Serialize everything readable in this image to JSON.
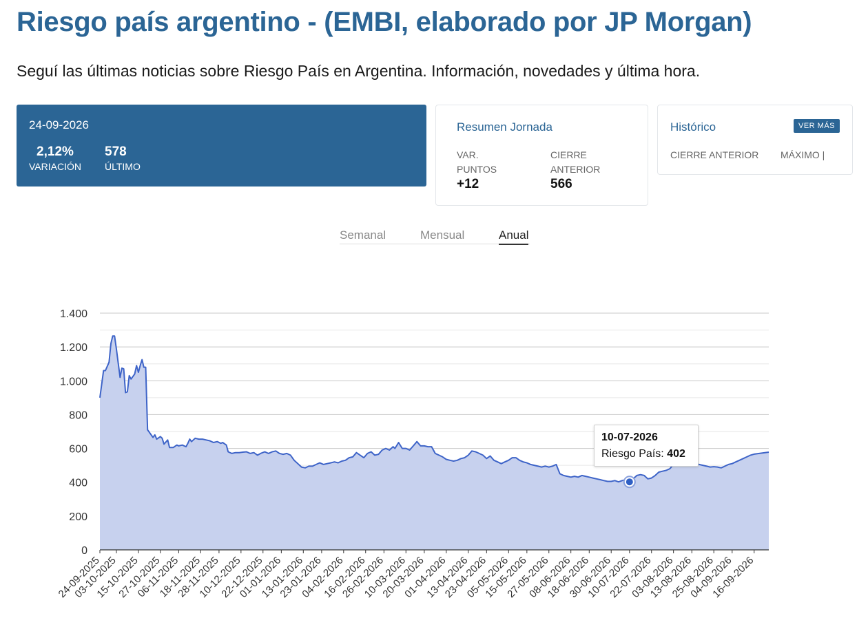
{
  "header": {
    "title": "Riesgo país argentino - (EMBI, elaborado por JP Morgan)",
    "subtitle": "Seguí las últimas noticias sobre Riesgo País en Argentina. Información, novedades y última hora."
  },
  "main_card": {
    "date": "24-09-2026",
    "variation_value": "2,12%",
    "variation_label": "Variación",
    "last_value": "578",
    "last_label": "Último"
  },
  "resumen": {
    "title": "Resumen Jornada",
    "var_label_line1": "Var.",
    "var_label_line2": "Puntos",
    "var_value": "+12",
    "cierre_label_line1": "Cierre",
    "cierre_label_line2": "Anterior",
    "cierre_value": "566"
  },
  "historico": {
    "title": "Histórico",
    "button": "VER MÁS",
    "col1": "Cierre Anterior",
    "col2": "Máximo |"
  },
  "tabs": [
    {
      "label": "Semanal",
      "active": false
    },
    {
      "label": "Mensual",
      "active": false
    },
    {
      "label": "Anual",
      "active": true
    }
  ],
  "tooltip": {
    "date": "10-07-2026",
    "series_label": "Riesgo País:",
    "value": "402"
  },
  "colors": {
    "brand": "#2b6595",
    "line": "#3e64c8",
    "area": "#c7d1ee"
  },
  "chart_data": {
    "type": "area",
    "series_name": "Riesgo País",
    "ylim": [
      0,
      1400
    ],
    "yticks": [
      0,
      200,
      400,
      600,
      800,
      1000,
      1200,
      1400
    ],
    "ytick_labels": [
      "0",
      "200",
      "400",
      "600",
      "800",
      "1.000",
      "1.200",
      "1.400"
    ],
    "grid": true,
    "xtick_labels": [
      "24-09-2025",
      "03-10-2025",
      "15-10-2025",
      "27-10-2025",
      "06-11-2025",
      "18-11-2025",
      "28-11-2025",
      "10-12-2025",
      "22-12-2025",
      "01-01-2026",
      "13-01-2026",
      "23-01-2026",
      "04-02-2026",
      "16-02-2026",
      "26-02-2026",
      "10-03-2026",
      "20-03-2026",
      "01-04-2026",
      "13-04-2026",
      "23-04-2026",
      "05-05-2026",
      "15-05-2026",
      "27-05-2026",
      "08-06-2026",
      "18-06-2026",
      "30-06-2026",
      "10-07-2026",
      "22-07-2026",
      "03-08-2026",
      "13-08-2026",
      "25-08-2026",
      "04-09-2026",
      "16-09-2026"
    ],
    "highlight": {
      "x": "10-07-2026",
      "y": 402
    },
    "points": [
      [
        "24-09-2025",
        900
      ],
      [
        "26-09-2025",
        1060
      ],
      [
        "27-09-2025",
        1060
      ],
      [
        "29-09-2025",
        1110
      ],
      [
        "30-09-2025",
        1220
      ],
      [
        "01-10-2025",
        1265
      ],
      [
        "02-10-2025",
        1265
      ],
      [
        "03-10-2025",
        1190
      ],
      [
        "05-10-2025",
        1020
      ],
      [
        "06-10-2025",
        1075
      ],
      [
        "07-10-2025",
        1070
      ],
      [
        "08-10-2025",
        930
      ],
      [
        "09-10-2025",
        935
      ],
      [
        "10-10-2025",
        1030
      ],
      [
        "11-10-2025",
        1010
      ],
      [
        "13-10-2025",
        1040
      ],
      [
        "14-10-2025",
        1090
      ],
      [
        "15-10-2025",
        1050
      ],
      [
        "16-10-2025",
        1090
      ],
      [
        "17-10-2025",
        1125
      ],
      [
        "18-10-2025",
        1080
      ],
      [
        "19-10-2025",
        1080
      ],
      [
        "20-10-2025",
        710
      ],
      [
        "22-10-2025",
        680
      ],
      [
        "23-10-2025",
        665
      ],
      [
        "24-10-2025",
        680
      ],
      [
        "25-10-2025",
        655
      ],
      [
        "27-10-2025",
        670
      ],
      [
        "28-10-2025",
        660
      ],
      [
        "29-10-2025",
        625
      ],
      [
        "31-10-2025",
        650
      ],
      [
        "01-11-2025",
        605
      ],
      [
        "03-11-2025",
        605
      ],
      [
        "05-11-2025",
        620
      ],
      [
        "06-11-2025",
        615
      ],
      [
        "08-11-2025",
        620
      ],
      [
        "10-11-2025",
        610
      ],
      [
        "11-11-2025",
        630
      ],
      [
        "12-11-2025",
        655
      ],
      [
        "13-11-2025",
        640
      ],
      [
        "15-11-2025",
        660
      ],
      [
        "17-11-2025",
        655
      ],
      [
        "19-11-2025",
        655
      ],
      [
        "21-11-2025",
        650
      ],
      [
        "23-11-2025",
        645
      ],
      [
        "25-11-2025",
        635
      ],
      [
        "27-11-2025",
        640
      ],
      [
        "29-11-2025",
        630
      ],
      [
        "30-11-2025",
        635
      ],
      [
        "02-12-2025",
        620
      ],
      [
        "03-12-2025",
        580
      ],
      [
        "05-12-2025",
        570
      ],
      [
        "07-12-2025",
        575
      ],
      [
        "09-12-2025",
        575
      ],
      [
        "11-12-2025",
        578
      ],
      [
        "13-12-2025",
        580
      ],
      [
        "15-12-2025",
        570
      ],
      [
        "17-12-2025",
        575
      ],
      [
        "19-12-2025",
        560
      ],
      [
        "21-12-2025",
        572
      ],
      [
        "23-12-2025",
        580
      ],
      [
        "25-12-2025",
        570
      ],
      [
        "27-12-2025",
        580
      ],
      [
        "29-12-2025",
        585
      ],
      [
        "31-12-2025",
        570
      ],
      [
        "02-01-2026",
        565
      ],
      [
        "04-01-2026",
        570
      ],
      [
        "06-01-2026",
        560
      ],
      [
        "08-01-2026",
        530
      ],
      [
        "10-01-2026",
        510
      ],
      [
        "12-01-2026",
        490
      ],
      [
        "14-01-2026",
        485
      ],
      [
        "16-01-2026",
        495
      ],
      [
        "18-01-2026",
        495
      ],
      [
        "20-01-2026",
        505
      ],
      [
        "22-01-2026",
        515
      ],
      [
        "24-01-2026",
        505
      ],
      [
        "26-01-2026",
        510
      ],
      [
        "28-01-2026",
        515
      ],
      [
        "30-01-2026",
        520
      ],
      [
        "01-02-2026",
        515
      ],
      [
        "03-02-2026",
        525
      ],
      [
        "05-02-2026",
        530
      ],
      [
        "07-02-2026",
        545
      ],
      [
        "09-02-2026",
        550
      ],
      [
        "11-02-2026",
        575
      ],
      [
        "13-02-2026",
        560
      ],
      [
        "15-02-2026",
        545
      ],
      [
        "17-02-2026",
        570
      ],
      [
        "19-02-2026",
        580
      ],
      [
        "21-02-2026",
        560
      ],
      [
        "23-02-2026",
        565
      ],
      [
        "25-02-2026",
        590
      ],
      [
        "27-02-2026",
        600
      ],
      [
        "01-03-2026",
        590
      ],
      [
        "03-03-2026",
        610
      ],
      [
        "04-03-2026",
        600
      ],
      [
        "06-03-2026",
        635
      ],
      [
        "08-03-2026",
        600
      ],
      [
        "10-03-2026",
        600
      ],
      [
        "12-03-2026",
        590
      ],
      [
        "14-03-2026",
        615
      ],
      [
        "16-03-2026",
        640
      ],
      [
        "18-03-2026",
        615
      ],
      [
        "20-03-2026",
        615
      ],
      [
        "22-03-2026",
        610
      ],
      [
        "24-03-2026",
        610
      ],
      [
        "26-03-2026",
        570
      ],
      [
        "28-03-2026",
        560
      ],
      [
        "30-03-2026",
        550
      ],
      [
        "01-04-2026",
        535
      ],
      [
        "03-04-2026",
        530
      ],
      [
        "05-04-2026",
        525
      ],
      [
        "07-04-2026",
        530
      ],
      [
        "09-04-2026",
        540
      ],
      [
        "11-04-2026",
        545
      ],
      [
        "13-04-2026",
        560
      ],
      [
        "15-04-2026",
        585
      ],
      [
        "17-04-2026",
        580
      ],
      [
        "19-04-2026",
        570
      ],
      [
        "21-04-2026",
        560
      ],
      [
        "23-04-2026",
        540
      ],
      [
        "25-04-2026",
        555
      ],
      [
        "27-04-2026",
        530
      ],
      [
        "29-04-2026",
        520
      ],
      [
        "01-05-2026",
        510
      ],
      [
        "03-05-2026",
        520
      ],
      [
        "05-05-2026",
        530
      ],
      [
        "07-05-2026",
        545
      ],
      [
        "09-05-2026",
        545
      ],
      [
        "11-05-2026",
        530
      ],
      [
        "13-05-2026",
        520
      ],
      [
        "15-05-2026",
        515
      ],
      [
        "17-05-2026",
        505
      ],
      [
        "19-05-2026",
        500
      ],
      [
        "21-05-2026",
        495
      ],
      [
        "23-05-2026",
        490
      ],
      [
        "25-05-2026",
        495
      ],
      [
        "27-05-2026",
        490
      ],
      [
        "29-05-2026",
        495
      ],
      [
        "31-05-2026",
        505
      ],
      [
        "02-06-2026",
        450
      ],
      [
        "04-06-2026",
        440
      ],
      [
        "06-06-2026",
        435
      ],
      [
        "08-06-2026",
        430
      ],
      [
        "10-06-2026",
        435
      ],
      [
        "12-06-2026",
        430
      ],
      [
        "14-06-2026",
        440
      ],
      [
        "16-06-2026",
        435
      ],
      [
        "18-06-2026",
        430
      ],
      [
        "20-06-2026",
        425
      ],
      [
        "22-06-2026",
        420
      ],
      [
        "24-06-2026",
        415
      ],
      [
        "26-06-2026",
        410
      ],
      [
        "28-06-2026",
        405
      ],
      [
        "30-06-2026",
        405
      ],
      [
        "02-07-2026",
        410
      ],
      [
        "04-07-2026",
        402
      ],
      [
        "06-07-2026",
        410
      ],
      [
        "08-07-2026",
        415
      ],
      [
        "10-07-2026",
        402
      ],
      [
        "12-07-2026",
        420
      ],
      [
        "14-07-2026",
        440
      ],
      [
        "16-07-2026",
        445
      ],
      [
        "18-07-2026",
        440
      ],
      [
        "20-07-2026",
        420
      ],
      [
        "22-07-2026",
        425
      ],
      [
        "24-07-2026",
        440
      ],
      [
        "26-07-2026",
        460
      ],
      [
        "28-07-2026",
        465
      ],
      [
        "30-07-2026",
        470
      ],
      [
        "01-08-2026",
        480
      ],
      [
        "03-08-2026",
        505
      ],
      [
        "05-08-2026",
        530
      ],
      [
        "07-08-2026",
        510
      ],
      [
        "09-08-2026",
        515
      ],
      [
        "11-08-2026",
        520
      ],
      [
        "13-08-2026",
        515
      ],
      [
        "15-08-2026",
        510
      ],
      [
        "17-08-2026",
        505
      ],
      [
        "19-08-2026",
        500
      ],
      [
        "21-08-2026",
        495
      ],
      [
        "23-08-2026",
        490
      ],
      [
        "25-08-2026",
        492
      ],
      [
        "27-08-2026",
        490
      ],
      [
        "29-08-2026",
        485
      ],
      [
        "31-08-2026",
        495
      ],
      [
        "02-09-2026",
        505
      ],
      [
        "04-09-2026",
        510
      ],
      [
        "06-09-2026",
        520
      ],
      [
        "08-09-2026",
        530
      ],
      [
        "10-09-2026",
        540
      ],
      [
        "12-09-2026",
        550
      ],
      [
        "14-09-2026",
        560
      ],
      [
        "16-09-2026",
        566
      ],
      [
        "24-09-2026",
        578
      ]
    ]
  }
}
